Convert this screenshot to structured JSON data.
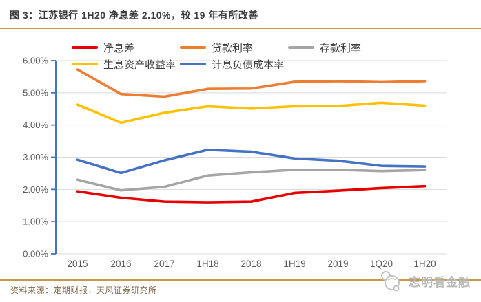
{
  "header": {
    "title": "图 3：江苏银行 1H20 净息差 2.10%，较 19 年有所改善"
  },
  "footer": {
    "source": "资料来源：定期财报，天风证券研究所",
    "watermark_text": "志明看金融",
    "watermark_icon": "panda-magnifier-icon"
  },
  "colors": {
    "accent_rule": "#c49a48",
    "grid": "#d9d9d9",
    "axis": "#4472c4",
    "tick_label": "#595959",
    "title_text": "#3b3b3b",
    "legend_text": "#3f3f3f",
    "source_text": "#7d6947",
    "watermark": "#b9b9b9"
  },
  "chart_data": {
    "type": "line",
    "title": "江苏银行 1H20 净息差 2.10%，较 19 年有所改善",
    "categories": [
      "2015",
      "2016",
      "2017",
      "1H18",
      "2018",
      "1H19",
      "2019",
      "1Q20",
      "1H20"
    ],
    "series": [
      {
        "name": "净息差",
        "color": "#e60000",
        "values": [
          1.94,
          1.74,
          1.62,
          1.6,
          1.62,
          1.89,
          1.96,
          2.04,
          2.1
        ]
      },
      {
        "name": "贷款利率",
        "color": "#ed7d31",
        "values": [
          5.72,
          4.96,
          4.88,
          5.12,
          5.13,
          5.34,
          5.36,
          5.33,
          5.36
        ]
      },
      {
        "name": "存款利率",
        "color": "#a5a5a5",
        "values": [
          2.3,
          1.97,
          2.08,
          2.43,
          2.53,
          2.61,
          2.61,
          2.57,
          2.6
        ]
      },
      {
        "name": "生息资产收益率",
        "color": "#ffc000",
        "values": [
          4.63,
          4.07,
          4.38,
          4.58,
          4.51,
          4.58,
          4.59,
          4.69,
          4.6
        ]
      },
      {
        "name": "计息负债成本率",
        "color": "#4472c4",
        "values": [
          2.92,
          2.51,
          2.9,
          3.23,
          3.17,
          2.96,
          2.89,
          2.73,
          2.71
        ]
      }
    ],
    "xlabel": "",
    "ylabel": "",
    "ylim": [
      0,
      6
    ],
    "yticks": [
      "0.00%",
      "1.00%",
      "2.00%",
      "3.00%",
      "4.00%",
      "5.00%",
      "6.00%"
    ],
    "grid": true,
    "legend_position": "top",
    "legend_rows": [
      [
        "净息差",
        "贷款利率",
        "存款利率"
      ],
      [
        "生息资产收益率",
        "计息负债成本率"
      ]
    ]
  }
}
